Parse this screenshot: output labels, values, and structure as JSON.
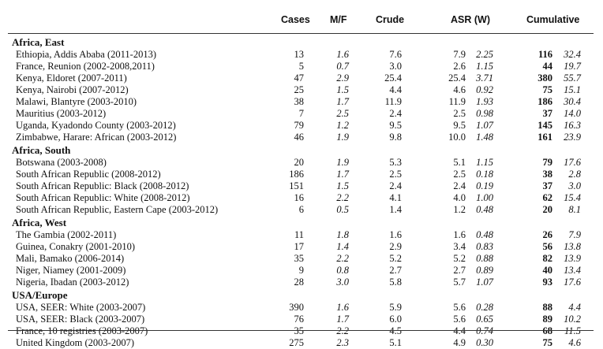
{
  "headers": {
    "cases": "Cases",
    "mf": "M/F",
    "crude": "Crude",
    "asr": "ASR (W)",
    "cumulative": "Cumulative"
  },
  "groups": [
    {
      "title": "Africa, East",
      "rows": [
        {
          "label": "Ethiopia, Addis Ababa (2011-2013)",
          "cases": "13",
          "mf": "1.6",
          "crude": "7.6",
          "asr": "7.9",
          "ci": "2.25",
          "cum": "116",
          "pct": "32.4"
        },
        {
          "label": "France, Reunion (2002-2008,2011)",
          "cases": "5",
          "mf": "0.7",
          "crude": "3.0",
          "asr": "2.6",
          "ci": "1.15",
          "cum": "44",
          "pct": "19.7"
        },
        {
          "label": "Kenya, Eldoret (2007-2011)",
          "cases": "47",
          "mf": "2.9",
          "crude": "25.4",
          "asr": "25.4",
          "ci": "3.71",
          "cum": "380",
          "pct": "55.7"
        },
        {
          "label": "Kenya, Nairobi (2007-2012)",
          "cases": "25",
          "mf": "1.5",
          "crude": "4.4",
          "asr": "4.6",
          "ci": "0.92",
          "cum": "75",
          "pct": "15.1"
        },
        {
          "label": "Malawi, Blantyre (2003-2010)",
          "cases": "38",
          "mf": "1.7",
          "crude": "11.9",
          "asr": "11.9",
          "ci": "1.93",
          "cum": "186",
          "pct": "30.4"
        },
        {
          "label": "Mauritius (2003-2012)",
          "cases": "7",
          "mf": "2.5",
          "crude": "2.4",
          "asr": "2.5",
          "ci": "0.98",
          "cum": "37",
          "pct": "14.0"
        },
        {
          "label": "Uganda, Kyadondo County (2003-2012)",
          "cases": "79",
          "mf": "1.2",
          "crude": "9.5",
          "asr": "9.5",
          "ci": "1.07",
          "cum": "145",
          "pct": "16.3"
        },
        {
          "label": "Zimbabwe, Harare: African (2003-2012)",
          "cases": "46",
          "mf": "1.9",
          "crude": "9.8",
          "asr": "10.0",
          "ci": "1.48",
          "cum": "161",
          "pct": "23.9"
        }
      ]
    },
    {
      "title": "Africa, South",
      "rows": [
        {
          "label": "Botswana (2003-2008)",
          "cases": "20",
          "mf": "1.9",
          "crude": "5.3",
          "asr": "5.1",
          "ci": "1.15",
          "cum": "79",
          "pct": "17.6"
        },
        {
          "label": "South African Republic (2008-2012)",
          "cases": "186",
          "mf": "1.7",
          "crude": "2.5",
          "asr": "2.5",
          "ci": "0.18",
          "cum": "38",
          "pct": "2.8"
        },
        {
          "label": "South African Republic: Black (2008-2012)",
          "cases": "151",
          "mf": "1.5",
          "crude": "2.4",
          "asr": "2.4",
          "ci": "0.19",
          "cum": "37",
          "pct": "3.0"
        },
        {
          "label": "South African Republic: White (2008-2012)",
          "cases": "16",
          "mf": "2.2",
          "crude": "4.1",
          "asr": "4.0",
          "ci": "1.00",
          "cum": "62",
          "pct": "15.4"
        },
        {
          "label": "South African Republic, Eastern Cape (2003-2012)",
          "cases": "6",
          "mf": "0.5",
          "crude": "1.4",
          "asr": "1.2",
          "ci": "0.48",
          "cum": "20",
          "pct": "8.1"
        }
      ]
    },
    {
      "title": "Africa, West",
      "rows": [
        {
          "label": "The Gambia (2002-2011)",
          "cases": "11",
          "mf": "1.8",
          "crude": "1.6",
          "asr": "1.6",
          "ci": "0.48",
          "cum": "26",
          "pct": "7.9"
        },
        {
          "label": "Guinea, Conakry (2001-2010)",
          "cases": "17",
          "mf": "1.4",
          "crude": "2.9",
          "asr": "3.4",
          "ci": "0.83",
          "cum": "56",
          "pct": "13.8"
        },
        {
          "label": "Mali, Bamako (2006-2014)",
          "cases": "35",
          "mf": "2.2",
          "crude": "5.2",
          "asr": "5.2",
          "ci": "0.88",
          "cum": "82",
          "pct": "13.9"
        },
        {
          "label": "Niger, Niamey (2001-2009)",
          "cases": "9",
          "mf": "0.8",
          "crude": "2.7",
          "asr": "2.7",
          "ci": "0.89",
          "cum": "40",
          "pct": "13.4"
        },
        {
          "label": "Nigeria, Ibadan (2003-2012)",
          "cases": "28",
          "mf": "3.0",
          "crude": "5.8",
          "asr": "5.7",
          "ci": "1.07",
          "cum": "93",
          "pct": "17.6"
        }
      ]
    },
    {
      "title": "USA/Europe",
      "rows": [
        {
          "label": "USA, SEER: White (2003-2007)",
          "cases": "390",
          "mf": "1.6",
          "crude": "5.9",
          "asr": "5.6",
          "ci": "0.28",
          "cum": "88",
          "pct": "4.4"
        },
        {
          "label": "USA, SEER: Black (2003-2007)",
          "cases": "76",
          "mf": "1.7",
          "crude": "6.0",
          "asr": "5.6",
          "ci": "0.65",
          "cum": "89",
          "pct": "10.2"
        },
        {
          "label": "France, 10 registries (2003-2007)",
          "cases": "35",
          "mf": "2.2",
          "crude": "4.5",
          "asr": "4.4",
          "ci": "0.74",
          "cum": "68",
          "pct": "11.5"
        },
        {
          "label": "United Kingdom (2003-2007)",
          "cases": "275",
          "mf": "2.3",
          "crude": "5.1",
          "asr": "4.9",
          "ci": "0.30",
          "cum": "75",
          "pct": "4.6"
        }
      ]
    }
  ]
}
